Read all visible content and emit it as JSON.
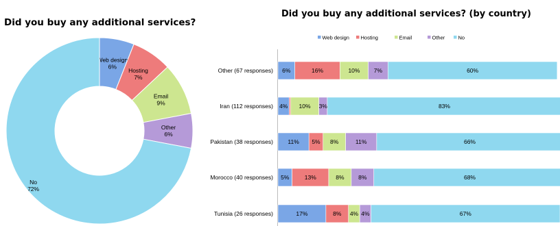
{
  "colors": {
    "Web design": "#7aa6e6",
    "Hosting": "#ee7b7b",
    "Email": "#cde690",
    "Other": "#b59ad8",
    "No": "#8fd8ef"
  },
  "chart_data": [
    {
      "type": "pie",
      "donut": true,
      "title": "Did you buy any additional services?",
      "labels": [
        "Web design",
        "Hosting",
        "Email",
        "Other",
        "No"
      ],
      "values": [
        6,
        7,
        9,
        6,
        72
      ],
      "value_labels": [
        "6%",
        "7%",
        "9%",
        "6%",
        "72%"
      ]
    },
    {
      "type": "bar",
      "orientation": "horizontal",
      "stacked": true,
      "title": "Did you buy any additional services? (by country)",
      "legend_position": "top",
      "categories": [
        "Other (67 responses)",
        "Iran (112 responses)",
        "Pakistan (38 responses)",
        "Morocco (40 responses)",
        "Tunisia (26 responses)"
      ],
      "series": [
        {
          "name": "Web design",
          "values": [
            6,
            4,
            11,
            5,
            17
          ],
          "labels": [
            "6%",
            "4%",
            "11%",
            "5%",
            "17%"
          ]
        },
        {
          "name": "Hosting",
          "values": [
            16,
            0.5,
            5,
            13,
            8
          ],
          "labels": [
            "16%",
            "",
            "5%",
            "13%",
            "8%"
          ]
        },
        {
          "name": "Email",
          "values": [
            10,
            10,
            8,
            8,
            4
          ],
          "labels": [
            "10%",
            "10%",
            "8%",
            "8%",
            "4%"
          ]
        },
        {
          "name": "Other",
          "values": [
            7,
            3,
            11,
            8,
            4
          ],
          "labels": [
            "7%",
            "3%",
            "11%",
            "8%",
            "4%"
          ]
        },
        {
          "name": "No",
          "values": [
            60,
            83,
            66,
            68,
            67
          ],
          "labels": [
            "60%",
            "83%",
            "66%",
            "68%",
            "67%"
          ]
        }
      ],
      "xlim": [
        0,
        100
      ]
    }
  ]
}
